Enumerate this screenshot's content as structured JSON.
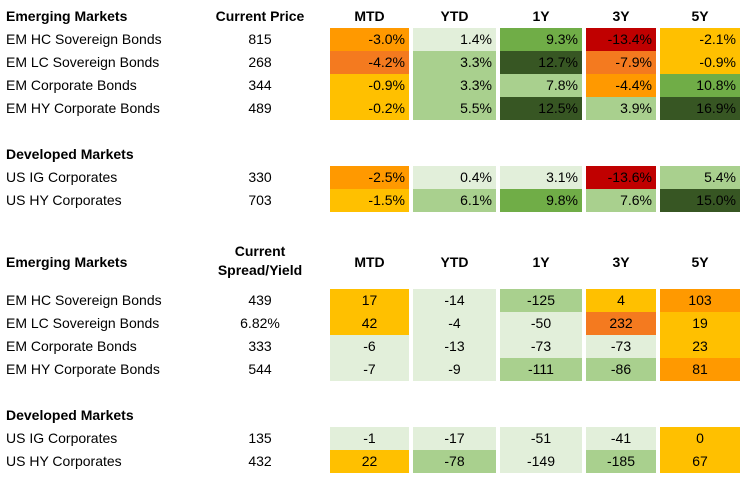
{
  "colors": {
    "dark_green": "#375623",
    "mid_green": "#70ad47",
    "light_green": "#a9d08e",
    "pale_green": "#e2efda",
    "yellow": "#ffc000",
    "orange": "#ff9900",
    "dark_orange": "#f47a1f",
    "red": "#c00000"
  },
  "price_table": {
    "headers": [
      "Current Price",
      "MTD",
      "YTD",
      "1Y",
      "3Y",
      "5Y"
    ],
    "sections": [
      {
        "title": "Emerging Markets",
        "rows": [
          {
            "label": "EM HC Sovereign Bonds",
            "price": "815",
            "values": [
              "-3.0%",
              "1.4%",
              "9.3%",
              "-13.4%",
              "-2.1%"
            ],
            "colors": [
              "orange",
              "pale_green",
              "mid_green",
              "red",
              "yellow"
            ]
          },
          {
            "label": "EM LC Sovereign Bonds",
            "price": "268",
            "values": [
              "-4.2%",
              "3.3%",
              "12.7%",
              "-7.9%",
              "-0.9%"
            ],
            "colors": [
              "dark_orange",
              "light_green",
              "dark_green",
              "dark_orange",
              "yellow"
            ]
          },
          {
            "label": "EM Corporate Bonds",
            "price": "344",
            "values": [
              "-0.9%",
              "3.3%",
              "7.8%",
              "-4.4%",
              "10.8%"
            ],
            "colors": [
              "yellow",
              "light_green",
              "light_green",
              "orange",
              "mid_green"
            ]
          },
          {
            "label": "EM HY Corporate Bonds",
            "price": "489",
            "values": [
              "-0.2%",
              "5.5%",
              "12.5%",
              "3.9%",
              "16.9%"
            ],
            "colors": [
              "yellow",
              "light_green",
              "dark_green",
              "light_green",
              "dark_green"
            ]
          }
        ]
      },
      {
        "title": "Developed Markets",
        "rows": [
          {
            "label": "US IG Corporates",
            "price": "330",
            "values": [
              "-2.5%",
              "0.4%",
              "3.1%",
              "-13.6%",
              "5.4%"
            ],
            "colors": [
              "orange",
              "pale_green",
              "pale_green",
              "red",
              "light_green"
            ]
          },
          {
            "label": "US HY Corporates",
            "price": "703",
            "values": [
              "-1.5%",
              "6.1%",
              "9.8%",
              "7.6%",
              "15.0%"
            ],
            "colors": [
              "yellow",
              "light_green",
              "mid_green",
              "light_green",
              "dark_green"
            ]
          }
        ]
      }
    ]
  },
  "spread_table": {
    "headers": [
      "Current\nSpread/Yield",
      "MTD",
      "YTD",
      "1Y",
      "3Y",
      "5Y"
    ],
    "header_line1": "Current",
    "header_line2": "Spread/Yield",
    "sections": [
      {
        "title": "Emerging Markets",
        "rows": [
          {
            "label": "EM HC Sovereign Bonds",
            "price": "439",
            "values": [
              "17",
              "-14",
              "-125",
              "4",
              "103"
            ],
            "colors": [
              "yellow",
              "pale_green",
              "light_green",
              "yellow",
              "orange"
            ]
          },
          {
            "label": "EM LC Sovereign Bonds",
            "price": "6.82%",
            "values": [
              "42",
              "-4",
              "-50",
              "232",
              "19"
            ],
            "colors": [
              "yellow",
              "pale_green",
              "pale_green",
              "dark_orange",
              "yellow"
            ]
          },
          {
            "label": "EM Corporate Bonds",
            "price": "333",
            "values": [
              "-6",
              "-13",
              "-73",
              "-73",
              "23"
            ],
            "colors": [
              "pale_green",
              "pale_green",
              "pale_green",
              "pale_green",
              "yellow"
            ]
          },
          {
            "label": "EM HY Corporate Bonds",
            "price": "544",
            "values": [
              "-7",
              "-9",
              "-111",
              "-86",
              "81"
            ],
            "colors": [
              "pale_green",
              "pale_green",
              "light_green",
              "light_green",
              "orange"
            ]
          }
        ]
      },
      {
        "title": "Developed Markets",
        "rows": [
          {
            "label": "US IG Corporates",
            "price": "135",
            "values": [
              "-1",
              "-17",
              "-51",
              "-41",
              "0"
            ],
            "colors": [
              "pale_green",
              "pale_green",
              "pale_green",
              "pale_green",
              "yellow"
            ]
          },
          {
            "label": "US HY Corporates",
            "price": "432",
            "values": [
              "22",
              "-78",
              "-149",
              "-185",
              "67"
            ],
            "colors": [
              "yellow",
              "light_green",
              "pale_green",
              "light_green",
              "yellow"
            ]
          }
        ]
      }
    ]
  },
  "chart_data": {
    "type": "table",
    "tables": [
      {
        "columns": [
          "Current Price",
          "MTD",
          "YTD",
          "1Y",
          "3Y",
          "5Y"
        ],
        "rows": [
          {
            "section": "Emerging Markets",
            "label": "EM HC Sovereign Bonds",
            "values": [
              "815",
              "-3.0%",
              "1.4%",
              "9.3%",
              "-13.4%",
              "-2.1%"
            ]
          },
          {
            "section": "Emerging Markets",
            "label": "EM LC Sovereign Bonds",
            "values": [
              "268",
              "-4.2%",
              "3.3%",
              "12.7%",
              "-7.9%",
              "-0.9%"
            ]
          },
          {
            "section": "Emerging Markets",
            "label": "EM Corporate Bonds",
            "values": [
              "344",
              "-0.9%",
              "3.3%",
              "7.8%",
              "-4.4%",
              "10.8%"
            ]
          },
          {
            "section": "Emerging Markets",
            "label": "EM HY Corporate Bonds",
            "values": [
              "489",
              "-0.2%",
              "5.5%",
              "12.5%",
              "3.9%",
              "16.9%"
            ]
          },
          {
            "section": "Developed Markets",
            "label": "US IG Corporates",
            "values": [
              "330",
              "-2.5%",
              "0.4%",
              "3.1%",
              "-13.6%",
              "5.4%"
            ]
          },
          {
            "section": "Developed Markets",
            "label": "US HY Corporates",
            "values": [
              "703",
              "-1.5%",
              "6.1%",
              "9.8%",
              "7.6%",
              "15.0%"
            ]
          }
        ]
      },
      {
        "columns": [
          "Current Spread/Yield",
          "MTD",
          "YTD",
          "1Y",
          "3Y",
          "5Y"
        ],
        "rows": [
          {
            "section": "Emerging Markets",
            "label": "EM HC Sovereign Bonds",
            "values": [
              "439",
              "17",
              "-14",
              "-125",
              "4",
              "103"
            ]
          },
          {
            "section": "Emerging Markets",
            "label": "EM LC Sovereign Bonds",
            "values": [
              "6.82%",
              "42",
              "-4",
              "-50",
              "232",
              "19"
            ]
          },
          {
            "section": "Emerging Markets",
            "label": "EM Corporate Bonds",
            "values": [
              "333",
              "-6",
              "-13",
              "-73",
              "-73",
              "23"
            ]
          },
          {
            "section": "Emerging Markets",
            "label": "EM HY Corporate Bonds",
            "values": [
              "544",
              "-7",
              "-9",
              "-111",
              "-86",
              "81"
            ]
          },
          {
            "section": "Developed Markets",
            "label": "US IG Corporates",
            "values": [
              "135",
              "-1",
              "-17",
              "-51",
              "-41",
              "0"
            ]
          },
          {
            "section": "Developed Markets",
            "label": "US HY Corporates",
            "values": [
              "432",
              "22",
              "-78",
              "-149",
              "-185",
              "67"
            ]
          }
        ]
      }
    ]
  }
}
